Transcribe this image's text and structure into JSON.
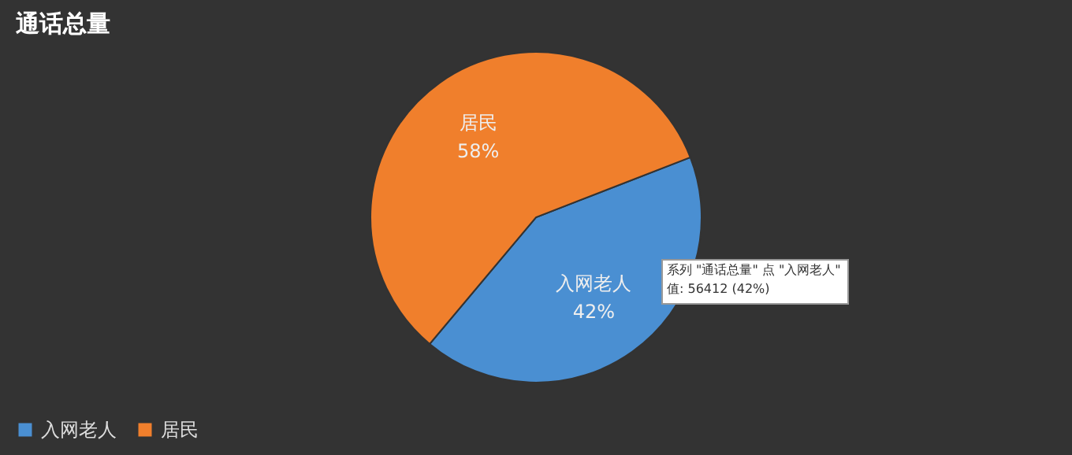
{
  "chart_data": {
    "type": "pie",
    "title": "通话总量",
    "categories": [
      "入网老人",
      "居民"
    ],
    "values": [
      42,
      58
    ],
    "colors": [
      "#4a8fd2",
      "#f07f2c"
    ],
    "value_labels": [
      "42%",
      "58%"
    ],
    "legend": "bottom",
    "annotations": [
      "系列 \"通话总量\" 点 \"入网老人\"",
      "值: 56412 (42%)"
    ]
  }
}
